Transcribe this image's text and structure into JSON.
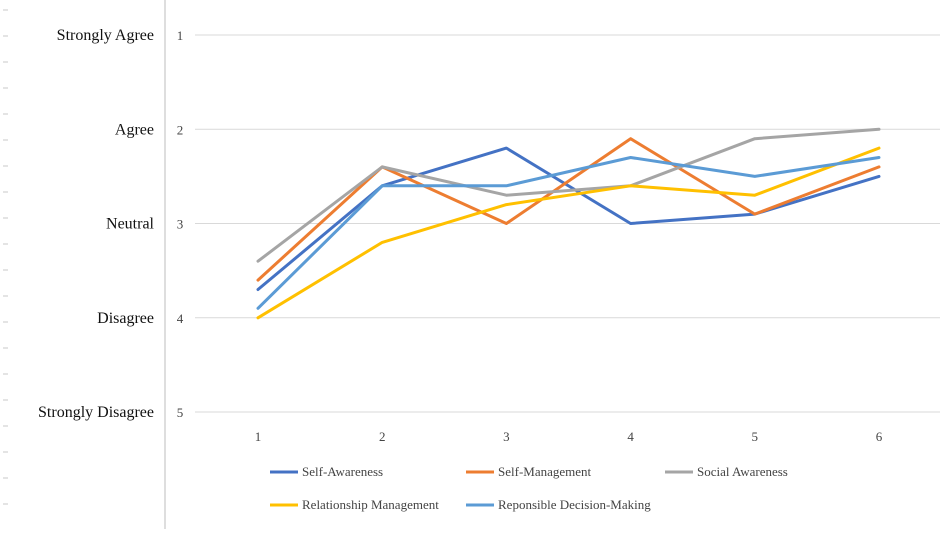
{
  "chart_data": {
    "type": "line",
    "title": "",
    "xlabel": "",
    "ylabel": "",
    "x": [
      1,
      2,
      3,
      4,
      5,
      6
    ],
    "ylim": [
      1,
      5
    ],
    "y_inverted": true,
    "y_ticks": [
      1,
      2,
      3,
      4,
      5
    ],
    "y_category_labels": [
      "Strongly Agree",
      "Agree",
      "Neutral",
      "Disagree",
      "Strongly Disagree"
    ],
    "grid": "horizontal",
    "legend_position": "bottom",
    "series": [
      {
        "name": "Self-Awareness",
        "color": "#4472c4",
        "values": [
          3.7,
          2.6,
          2.2,
          3.0,
          2.9,
          2.5
        ]
      },
      {
        "name": "Self-Management",
        "color": "#ed7d31",
        "values": [
          3.6,
          2.4,
          3.0,
          2.1,
          2.9,
          2.4
        ]
      },
      {
        "name": "Social Awareness",
        "color": "#a5a5a5",
        "values": [
          3.4,
          2.4,
          2.7,
          2.6,
          2.1,
          2.0
        ]
      },
      {
        "name": "Relationship Management",
        "color": "#ffc000",
        "values": [
          4.0,
          3.2,
          2.8,
          2.6,
          2.7,
          2.2
        ]
      },
      {
        "name": "Reponsible Decision-Making",
        "color": "#5b9bd5",
        "values": [
          3.9,
          2.6,
          2.6,
          2.3,
          2.5,
          2.3
        ]
      }
    ]
  }
}
